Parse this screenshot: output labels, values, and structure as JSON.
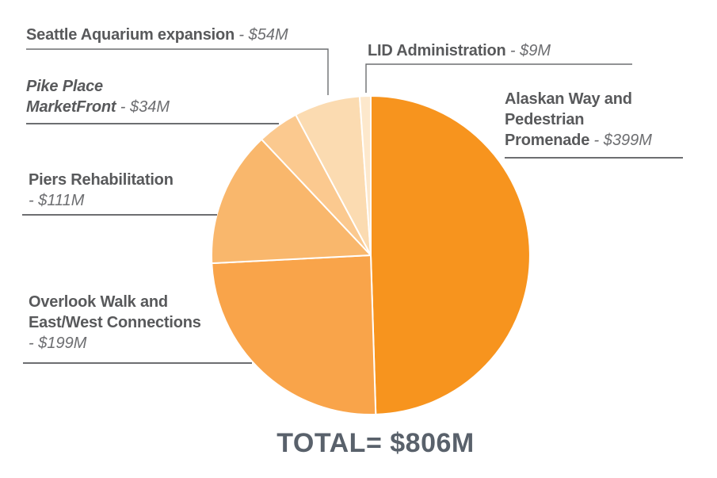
{
  "palette": {
    "background": "#FFFFFF",
    "label_text": "#58595B",
    "value_text": "#6D6E71",
    "total_text": "#59616B",
    "leader_line": "#6D6E71",
    "slice_divider": "#FFFFFF"
  },
  "chart_data": {
    "type": "pie",
    "title": "",
    "unit": "$M",
    "direction": "clockwise",
    "start_angle_deg": 0,
    "total_value": 806,
    "total_label": "TOTAL= $806M",
    "slices": [
      {
        "label": "Alaskan Way and Pedestrian Promenade",
        "value": 399,
        "value_label": "$399M",
        "color": "#F7941E"
      },
      {
        "label": "Overlook Walk and East/West Connections",
        "value": 199,
        "value_label": "$199M",
        "color": "#F9A44A"
      },
      {
        "label": "Piers Rehabilitation",
        "value": 111,
        "value_label": "$111M",
        "color": "#F9B76C"
      },
      {
        "label": "Pike Place MarketFront",
        "value": 34,
        "value_label": "$34M",
        "color": "#FBC98F"
      },
      {
        "label": "Seattle Aquarium expansion",
        "value": 54,
        "value_label": "$54M",
        "color": "#FBDBB1"
      },
      {
        "label": "LID Administration",
        "value": 9,
        "value_label": "$9M",
        "color": "#FDE8CC"
      }
    ]
  },
  "callouts": {
    "seattle": {
      "name": "Seattle Aquarium expansion",
      "value": "- $54M"
    },
    "lid": {
      "name": "LID Administration",
      "value": "- $9M"
    },
    "pike": {
      "line1": "Pike Place",
      "line2": "MarketFront",
      "value": "- $34M"
    },
    "piers": {
      "name": "Piers Rehabilitation",
      "value": "- $111M"
    },
    "overlook": {
      "line1": "Overlook Walk and",
      "line2": "East/West Connections",
      "value": "- $199M"
    },
    "alaskan": {
      "line1": "Alaskan Way and",
      "line2": "Pedestrian",
      "line3": "Promenade",
      "value": "- $399M"
    }
  },
  "total": {
    "label": "TOTAL= $806M"
  }
}
